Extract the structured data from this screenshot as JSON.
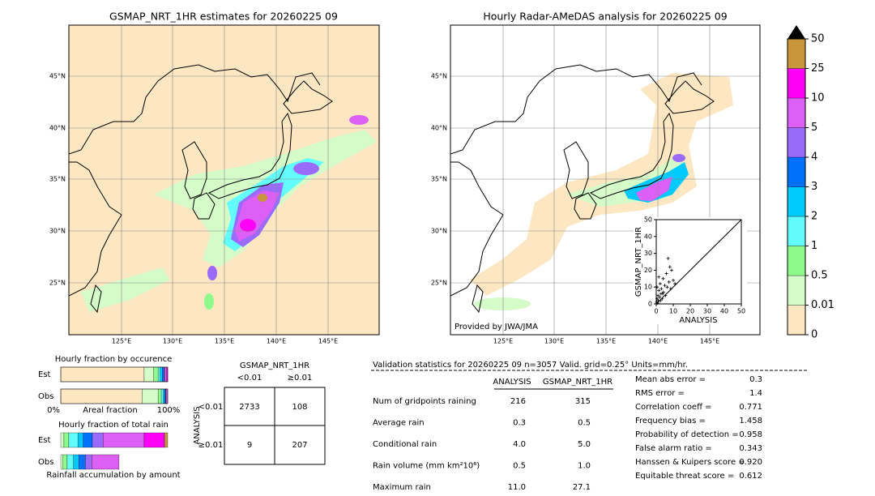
{
  "maps": [
    {
      "title": "GSMAP_NRT_1HR estimates for 20260225 09",
      "lat_labels": [
        "45°N",
        "40°N",
        "35°N",
        "30°N",
        "25°N"
      ],
      "lon_labels": [
        "125°E",
        "130°E",
        "135°E",
        "140°E",
        "145°E"
      ]
    },
    {
      "title": "Hourly Radar-AMeDAS analysis for 20260225 09",
      "lat_labels": [
        "45°N",
        "40°N",
        "35°N",
        "30°N",
        "25°N"
      ],
      "lon_labels": [
        "125°E",
        "130°E",
        "135°E",
        "140°E",
        "145°E"
      ],
      "credit": "Provided by JWA/JMA"
    }
  ],
  "scatter": {
    "xlabel": "ANALYSIS",
    "ylabel": "GSMAP_NRT_1HR",
    "xlim": [
      0,
      50
    ],
    "ylim": [
      0,
      50
    ],
    "xticks": [
      0,
      10,
      20,
      30,
      40,
      50
    ],
    "yticks": [
      0,
      10,
      20,
      30,
      40,
      50
    ],
    "x": [
      0.2,
      0.5,
      0.8,
      1,
      1.2,
      1.5,
      2,
      2.3,
      2.8,
      3,
      3.5,
      4,
      4.2,
      5,
      5.5,
      6,
      6.5,
      7,
      7.5,
      8,
      8.5,
      9,
      10,
      11,
      0.5,
      1.5,
      2.5,
      3.8
    ],
    "y": [
      1,
      3,
      0.5,
      5,
      2,
      8,
      4,
      12,
      6,
      9,
      3,
      15,
      7,
      11,
      5,
      18,
      10,
      27,
      13,
      22,
      9,
      20,
      14,
      12,
      10,
      16,
      2,
      6
    ]
  },
  "colorbar": {
    "levels": [
      0,
      0.01,
      0.5,
      1,
      2,
      3,
      4,
      5,
      10,
      25,
      50
    ],
    "colors": [
      "#fce7c2",
      "#d5fbc9",
      "#8ffa8c",
      "#63fcfc",
      "#00c9fb",
      "#0071fb",
      "#9a6afb",
      "#dc60f6",
      "#ff00f7",
      "#c9963c"
    ]
  },
  "occurrence": {
    "title": "Hourly fraction by occurence",
    "xlabel": "Areal fraction",
    "left": "0%",
    "right": "100%",
    "rows": [
      {
        "label": "Est",
        "fractions": [
          0.78,
          0.09,
          0.04,
          0.02,
          0.02,
          0.015,
          0.01,
          0.015,
          0.01,
          0
        ]
      },
      {
        "label": "Obs",
        "fractions": [
          0.76,
          0.15,
          0.03,
          0.02,
          0.01,
          0.01,
          0.005,
          0.015,
          0,
          0
        ]
      }
    ]
  },
  "total": {
    "title": "Hourly fraction of total rain",
    "xlabel": "Rainfall accumulation by amount",
    "rows": [
      {
        "label": "Est",
        "fractions": [
          0,
          0.03,
          0.045,
          0.085,
          0.05,
          0.085,
          0.1,
          0.385,
          0.19,
          0.03
        ]
      },
      {
        "label": "Obs",
        "fractions": [
          0,
          0.02,
          0.04,
          0.06,
          0.05,
          0.06,
          0.06,
          0.255,
          0,
          0
        ]
      }
    ]
  },
  "contingency": {
    "title": "GSMAP_NRT_1HR",
    "cols": [
      "<0.01",
      "≥0.01"
    ],
    "ylabel": "ANALYSIS",
    "rows": [
      "<0.01",
      "≥0.01"
    ],
    "cells": [
      [
        "2733",
        "108"
      ],
      [
        "9",
        "207"
      ]
    ]
  },
  "validation": {
    "header": "Validation statistics for 20260225 09  n=3057 Valid. grid=0.25° Units=mm/hr.",
    "columns": [
      "ANALYSIS",
      "GSMAP_NRT_1HR"
    ],
    "rows": [
      [
        "Num of gridpoints raining",
        "216",
        "315"
      ],
      [
        "Average rain",
        "0.3",
        "0.5"
      ],
      [
        "Conditional rain",
        "4.0",
        "5.0"
      ],
      [
        "Rain volume (mm km²10⁶)",
        "0.5",
        "1.0"
      ],
      [
        "Maximum rain",
        "11.0",
        "27.1"
      ]
    ],
    "scores": [
      [
        "Mean abs error =",
        "0.3"
      ],
      [
        "RMS error =",
        "1.4"
      ],
      [
        "Correlation coeff =",
        "0.771"
      ],
      [
        "Frequency bias =",
        "1.458"
      ],
      [
        "Probability of detection =",
        "0.958"
      ],
      [
        "False alarm ratio =",
        "0.343"
      ],
      [
        "Hanssen & Kuipers score =",
        "0.920"
      ],
      [
        "Equitable threat score =",
        "0.612"
      ]
    ]
  }
}
